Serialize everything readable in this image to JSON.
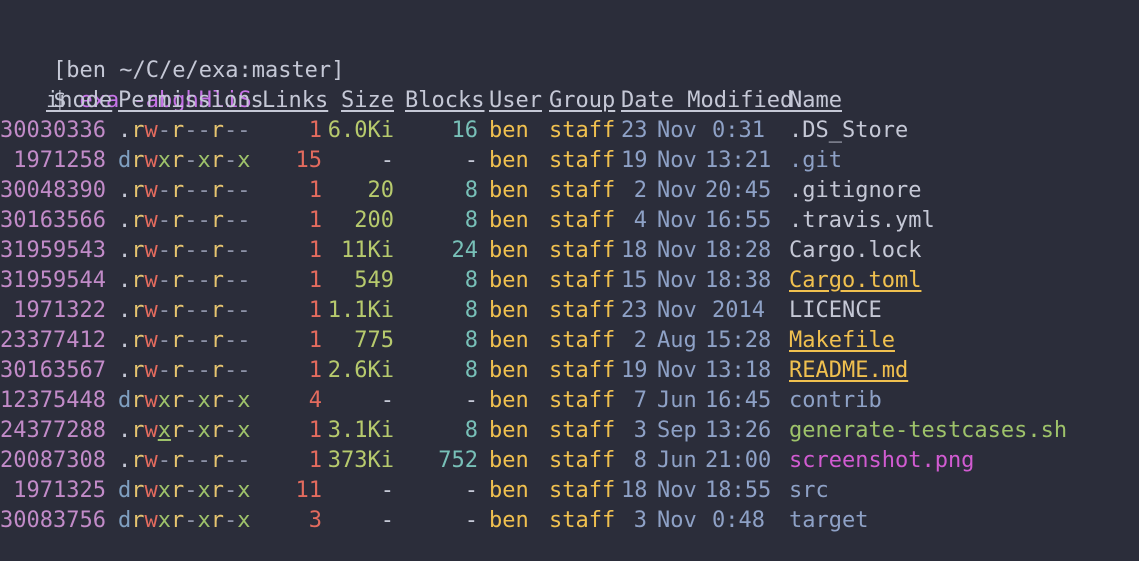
{
  "prompt": {
    "open": "[",
    "user": "ben",
    "path": "~/C/e/exa",
    "sep": ":",
    "branch": "master",
    "close": "]",
    "dollar": "$",
    "command": "exa -abghHliS"
  },
  "headers": {
    "inode": "inode",
    "permissions": "Permissions",
    "links": "Links",
    "size": "Size",
    "blocks": "Blocks",
    "user": "User",
    "group": "Group",
    "date_modified": "Date Modified",
    "name": "Name"
  },
  "rows": [
    {
      "inode": "30030336",
      "perm_type": ".",
      "perm": [
        "r",
        "w",
        "-",
        "r",
        "-",
        "-",
        "r",
        "-",
        "-"
      ],
      "links": "1",
      "size": "6.0Ki",
      "blocks": "16",
      "user": "ben",
      "group": "staff",
      "day": "23",
      "month": "Nov",
      "time": "0:31",
      "name": "DS_Store",
      "name_full": ".DS_Store",
      "kind": "file"
    },
    {
      "inode": "1971258",
      "perm_type": "d",
      "perm": [
        "r",
        "w",
        "x",
        "r",
        "-",
        "x",
        "r",
        "-",
        "x"
      ],
      "links": "15",
      "size": "-",
      "blocks": "-",
      "user": "ben",
      "group": "staff",
      "day": "19",
      "month": "Nov",
      "time": "13:21",
      "name_full": ".git",
      "kind": "git"
    },
    {
      "inode": "30048390",
      "perm_type": ".",
      "perm": [
        "r",
        "w",
        "-",
        "r",
        "-",
        "-",
        "r",
        "-",
        "-"
      ],
      "links": "1",
      "size": "20",
      "blocks": "8",
      "user": "ben",
      "group": "staff",
      "day": "2",
      "month": "Nov",
      "time": "20:45",
      "name_full": ".gitignore",
      "kind": "file"
    },
    {
      "inode": "30163566",
      "perm_type": ".",
      "perm": [
        "r",
        "w",
        "-",
        "r",
        "-",
        "-",
        "r",
        "-",
        "-"
      ],
      "links": "1",
      "size": "200",
      "blocks": "8",
      "user": "ben",
      "group": "staff",
      "day": "4",
      "month": "Nov",
      "time": "16:55",
      "name_full": ".travis.yml",
      "kind": "file"
    },
    {
      "inode": "31959543",
      "perm_type": ".",
      "perm": [
        "r",
        "w",
        "-",
        "r",
        "-",
        "-",
        "r",
        "-",
        "-"
      ],
      "links": "1",
      "size": "11Ki",
      "blocks": "24",
      "user": "ben",
      "group": "staff",
      "day": "18",
      "month": "Nov",
      "time": "18:28",
      "name_full": "Cargo.lock",
      "kind": "file"
    },
    {
      "inode": "31959544",
      "perm_type": ".",
      "perm": [
        "r",
        "w",
        "-",
        "r",
        "-",
        "-",
        "r",
        "-",
        "-"
      ],
      "links": "1",
      "size": "549",
      "blocks": "8",
      "user": "ben",
      "group": "staff",
      "day": "15",
      "month": "Nov",
      "time": "18:38",
      "name_full": "Cargo.toml",
      "kind": "build"
    },
    {
      "inode": "1971322",
      "perm_type": ".",
      "perm": [
        "r",
        "w",
        "-",
        "r",
        "-",
        "-",
        "r",
        "-",
        "-"
      ],
      "links": "1",
      "size": "1.1Ki",
      "blocks": "8",
      "user": "ben",
      "group": "staff",
      "day": "23",
      "month": "Nov",
      "time": "2014",
      "name_full": "LICENCE",
      "kind": "file"
    },
    {
      "inode": "23377412",
      "perm_type": ".",
      "perm": [
        "r",
        "w",
        "-",
        "r",
        "-",
        "-",
        "r",
        "-",
        "-"
      ],
      "links": "1",
      "size": "775",
      "blocks": "8",
      "user": "ben",
      "group": "staff",
      "day": "2",
      "month": "Aug",
      "time": "15:28",
      "name_full": "Makefile",
      "kind": "build"
    },
    {
      "inode": "30163567",
      "perm_type": ".",
      "perm": [
        "r",
        "w",
        "-",
        "r",
        "-",
        "-",
        "r",
        "-",
        "-"
      ],
      "links": "1",
      "size": "2.6Ki",
      "blocks": "8",
      "user": "ben",
      "group": "staff",
      "day": "19",
      "month": "Nov",
      "time": "13:18",
      "name_full": "README.md",
      "kind": "build"
    },
    {
      "inode": "12375448",
      "perm_type": "d",
      "perm": [
        "r",
        "w",
        "x",
        "r",
        "-",
        "x",
        "r",
        "-",
        "x"
      ],
      "links": "4",
      "size": "-",
      "blocks": "-",
      "user": "ben",
      "group": "staff",
      "day": "7",
      "month": "Jun",
      "time": "16:45",
      "name_full": "contrib",
      "kind": "dir"
    },
    {
      "inode": "24377288",
      "perm_type": ".",
      "perm": [
        "r",
        "w",
        "x",
        "r",
        "-",
        "x",
        "r",
        "-",
        "x"
      ],
      "links": "1",
      "size": "3.1Ki",
      "blocks": "8",
      "user": "ben",
      "group": "staff",
      "day": "3",
      "month": "Sep",
      "time": "13:26",
      "name_full": "generate-testcases.sh",
      "kind": "exec"
    },
    {
      "inode": "20087308",
      "perm_type": ".",
      "perm": [
        "r",
        "w",
        "-",
        "r",
        "-",
        "-",
        "r",
        "-",
        "-"
      ],
      "links": "1",
      "size": "373Ki",
      "blocks": "752",
      "user": "ben",
      "group": "staff",
      "day": "8",
      "month": "Jun",
      "time": "21:00",
      "name_full": "screenshot.png",
      "kind": "image"
    },
    {
      "inode": "1971325",
      "perm_type": "d",
      "perm": [
        "r",
        "w",
        "x",
        "r",
        "-",
        "x",
        "r",
        "-",
        "x"
      ],
      "links": "11",
      "size": "-",
      "blocks": "-",
      "user": "ben",
      "group": "staff",
      "day": "18",
      "month": "Nov",
      "time": "18:55",
      "name_full": "src",
      "kind": "dir"
    },
    {
      "inode": "30083756",
      "perm_type": "d",
      "perm": [
        "r",
        "w",
        "x",
        "r",
        "-",
        "x",
        "r",
        "-",
        "x"
      ],
      "links": "3",
      "size": "-",
      "blocks": "-",
      "user": "ben",
      "group": "staff",
      "day": "3",
      "month": "Nov",
      "time": "0:48",
      "name_full": "target",
      "kind": "dir"
    }
  ],
  "colors": {
    "background": "#2b2d3a",
    "text": "#c5c8d6",
    "inode": "#c28bc8",
    "links": "#e36b5e",
    "size": "#b7ca6d",
    "blocks": "#78c0b8",
    "user_group": "#f0c04f",
    "date": "#8ea1c6",
    "command": "#c774e8",
    "image": "#d15bd1",
    "exec": "#9ec26a"
  }
}
